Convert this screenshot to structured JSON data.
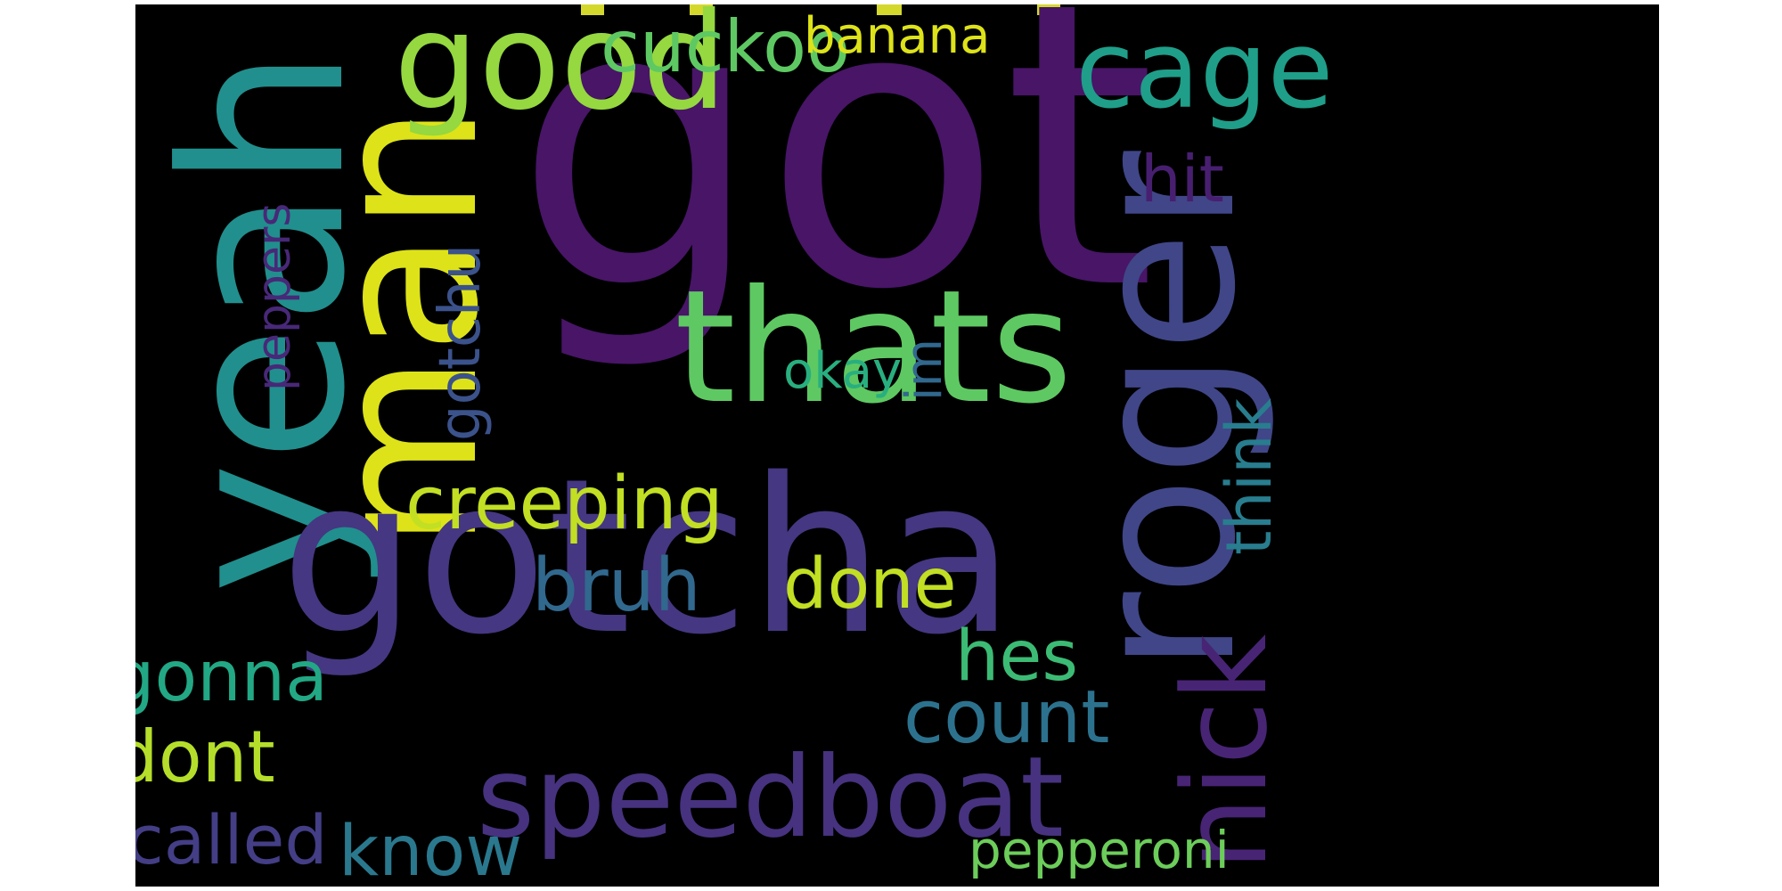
{
  "words": [
    {
      "text": "got",
      "color": "#481567",
      "rot": 0
    },
    {
      "text": "yeah",
      "color": "#218f8d",
      "rot": -90
    },
    {
      "text": "man",
      "color": "#dde318",
      "rot": -90
    },
    {
      "text": "good",
      "color": "#95d840",
      "rot": 0
    },
    {
      "text": "gotcha",
      "color": "#453781",
      "rot": 0
    },
    {
      "text": "thats",
      "color": "#5ec962",
      "rot": 0
    },
    {
      "text": "roger",
      "color": "#404688",
      "rot": -90
    },
    {
      "text": "cage",
      "color": "#1f9e89",
      "rot": 0
    },
    {
      "text": "cuckoo",
      "color": "#5ec962",
      "rot": 0
    },
    {
      "text": "banana",
      "color": "#dde318",
      "rot": 0
    },
    {
      "text": "hit",
      "color": "#481f70",
      "rot": 0
    },
    {
      "text": "peppers",
      "color": "#482878",
      "rot": -90
    },
    {
      "text": "gotchu",
      "color": "#3b528b",
      "rot": -90
    },
    {
      "text": "okay",
      "color": "#29af7f",
      "rot": 0
    },
    {
      "text": "im",
      "color": "#31688e",
      "rot": -90
    },
    {
      "text": "think",
      "color": "#287d8e",
      "rot": -90
    },
    {
      "text": "creeping",
      "color": "#c2df23",
      "rot": 0
    },
    {
      "text": "bruh",
      "color": "#31688e",
      "rot": 0
    },
    {
      "text": "done",
      "color": "#c2df23",
      "rot": 0
    },
    {
      "text": "nick",
      "color": "#482475",
      "rot": -90
    },
    {
      "text": "hes",
      "color": "#3cbb75",
      "rot": 0
    },
    {
      "text": "count",
      "color": "#2c728e",
      "rot": 0
    },
    {
      "text": "gonna",
      "color": "#22a884",
      "rot": 0
    },
    {
      "text": "dont",
      "color": "#b5de2b",
      "rot": 0
    },
    {
      "text": "speedboat",
      "color": "#46327e",
      "rot": 0
    },
    {
      "text": "called",
      "color": "#433e85",
      "rot": 0
    },
    {
      "text": "know",
      "color": "#2a788e",
      "rot": 0
    },
    {
      "text": "pepperoni",
      "color": "#6ccd5a",
      "rot": 0
    }
  ]
}
